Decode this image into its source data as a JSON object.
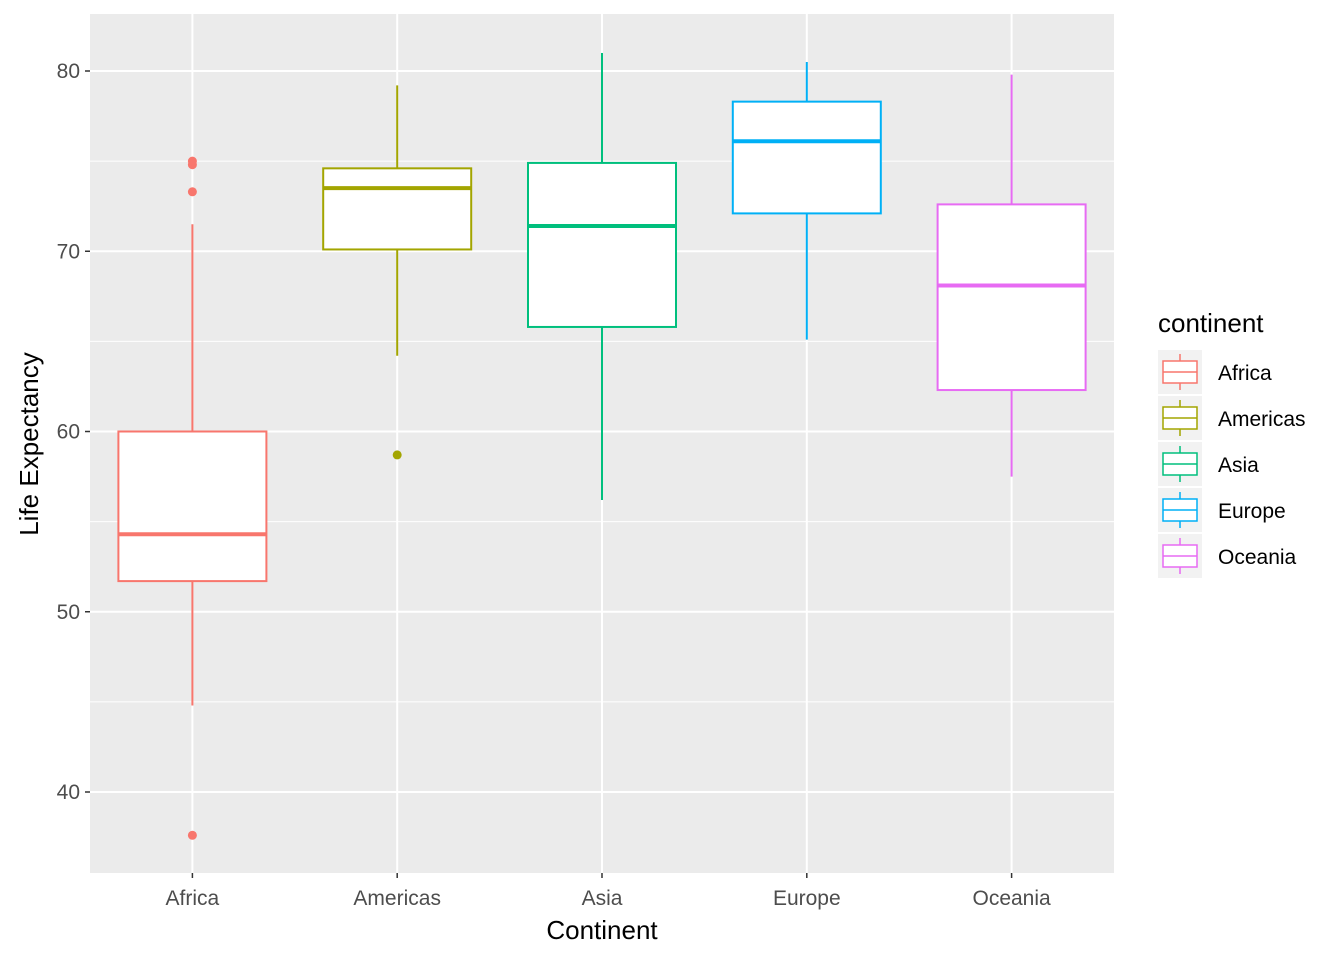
{
  "chart_data": {
    "type": "boxplot",
    "xlabel": "Continent",
    "ylabel": "Life Expectancy",
    "ylim": [
      35,
      83
    ],
    "yticks": [
      40,
      50,
      60,
      70,
      80
    ],
    "grid": true,
    "legend": {
      "title": "continent",
      "placement": "right",
      "entries": [
        "Africa",
        "Americas",
        "Asia",
        "Europe",
        "Oceania"
      ]
    },
    "categories": [
      "Africa",
      "Americas",
      "Asia",
      "Europe",
      "Oceania"
    ],
    "colors": {
      "Africa": "#F8766D",
      "Americas": "#A3A500",
      "Asia": "#00BF7D",
      "Europe": "#00B0F6",
      "Oceania": "#E76BF3",
      "panel": "#EBEBEB",
      "grid": "#FFFFFF"
    },
    "boxes": [
      {
        "category": "Africa",
        "whisker_low": 44.8,
        "q1": 51.7,
        "median": 54.3,
        "q3": 60.0,
        "whisker_high": 71.5,
        "outliers": [
          37.6,
          73.3,
          74.8,
          75.0
        ]
      },
      {
        "category": "Americas",
        "whisker_low": 64.2,
        "q1": 70.1,
        "median": 73.5,
        "q3": 74.6,
        "whisker_high": 79.2,
        "outliers": [
          58.7
        ]
      },
      {
        "category": "Asia",
        "whisker_low": 56.2,
        "q1": 65.8,
        "median": 71.4,
        "q3": 74.9,
        "whisker_high": 81.0,
        "outliers": []
      },
      {
        "category": "Europe",
        "whisker_low": 65.1,
        "q1": 72.1,
        "median": 76.1,
        "q3": 78.3,
        "whisker_high": 80.5,
        "outliers": []
      },
      {
        "category": "Oceania",
        "whisker_low": 57.5,
        "q1": 62.3,
        "median": 68.1,
        "q3": 72.6,
        "whisker_high": 79.8,
        "outliers": []
      }
    ]
  }
}
